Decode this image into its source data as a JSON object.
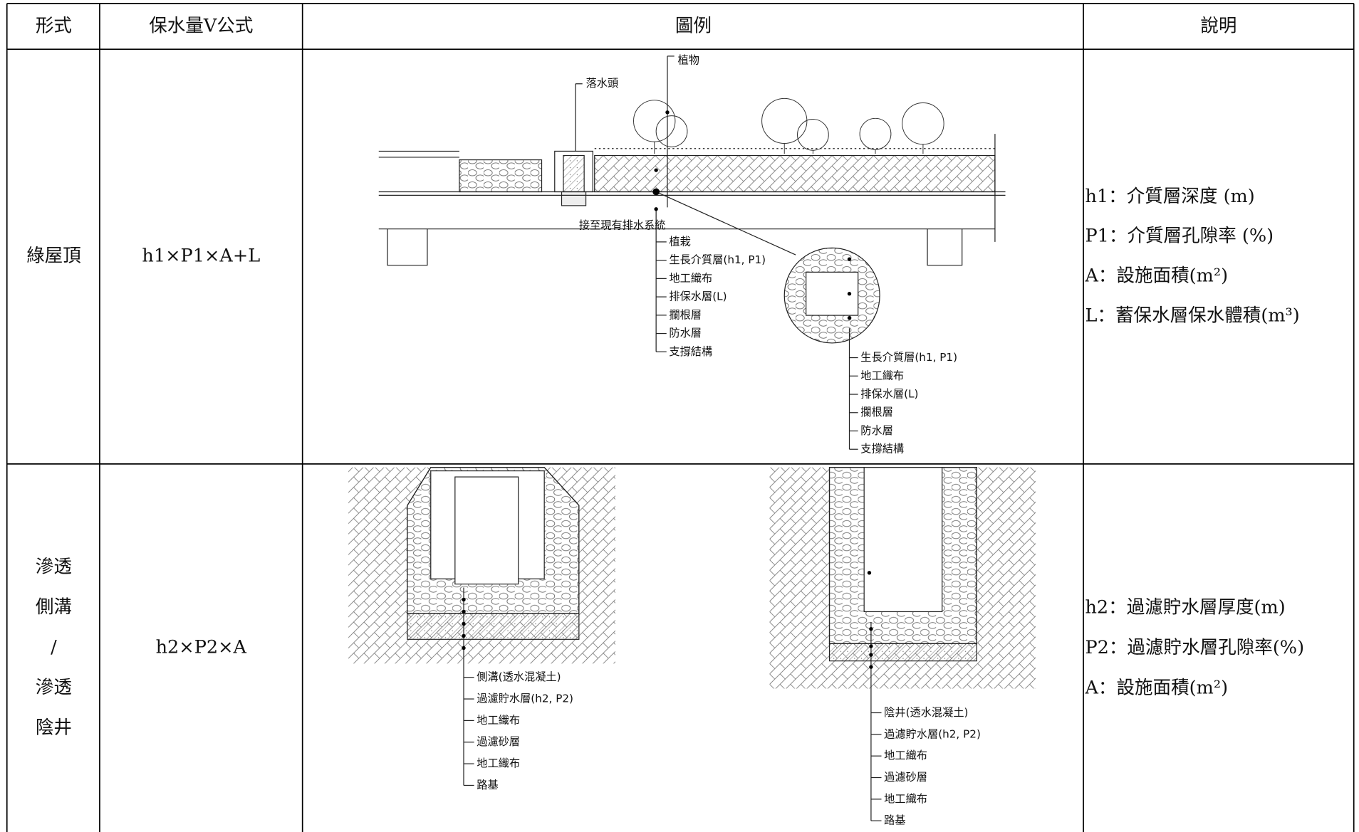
{
  "header": [
    "形式",
    "保水量V公式",
    "圖例",
    "說明"
  ],
  "rows": [
    {
      "type": [
        "綠屋頂"
      ],
      "formula": "h1×P1×A+L",
      "diagram": {
        "callouts": [
          "植物",
          "落水頭",
          "接至現有排水系統"
        ],
        "layers": [
          "植栽",
          "生長介質層(h1, P1)",
          "地工織布",
          "排保水層(L)",
          "攔根層",
          "防水層",
          "支撐結構"
        ],
        "detail_layers": [
          "生長介質層(h1, P1)",
          "地工織布",
          "排保水層(L)",
          "攔根層",
          "防水層",
          "支撐結構"
        ]
      },
      "notes": [
        "h1：介質層深度 (m)",
        "P1：介質層孔隙率 (%)",
        "A：設施面積(m²)",
        "L：蓄保水層保水體積(m³)"
      ]
    },
    {
      "type": [
        "滲透",
        "側溝",
        "/",
        "滲透",
        "陰井"
      ],
      "formula": "h2×P2×A",
      "diagrams": [
        {
          "layers": [
            "側溝(透水混凝土)",
            "過濾貯水層(h2, P2)",
            "地工織布",
            "過濾砂層",
            "地工織布",
            "路基"
          ]
        },
        {
          "layers": [
            "陰井(透水混凝土)",
            "過濾貯水層(h2, P2)",
            "地工織布",
            "過濾砂層",
            "地工織布",
            "路基"
          ]
        }
      ],
      "notes": [
        "h2：過濾貯水層厚度(m)",
        "P2：過濾貯水層孔隙率(%)",
        "A：設施面積(m²)"
      ]
    }
  ]
}
